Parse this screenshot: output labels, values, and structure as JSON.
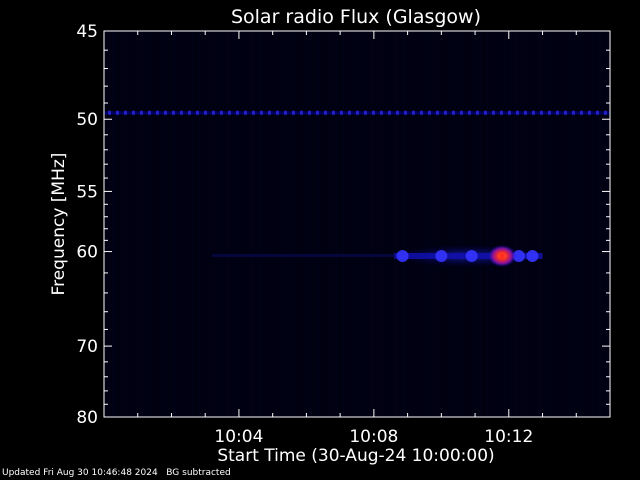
{
  "chart_data": {
    "type": "heatmap",
    "title": "Solar radio Flux (Glasgow)",
    "xlabel": "Start Time (30-Aug-24 10:00:00)",
    "ylabel": "Frequency [MHz]",
    "x_range_minutes": [
      0,
      15
    ],
    "ylim": [
      45,
      80
    ],
    "y_ticks": [
      45,
      50,
      55,
      60,
      70,
      80
    ],
    "x_ticks": [
      {
        "minute": 4,
        "label": "10:04"
      },
      {
        "minute": 8,
        "label": "10:08"
      },
      {
        "minute": 12,
        "label": "10:12"
      }
    ],
    "background_color": "#000010",
    "features": [
      {
        "kind": "interference-line",
        "freq_mhz": 49.6,
        "color": "#2020c8"
      },
      {
        "kind": "burst",
        "minute_start": 8.6,
        "minute_end": 13.0,
        "freq_mhz": 60.4,
        "color": "#1010b0"
      },
      {
        "kind": "burst-peak",
        "minute": 11.8,
        "freq_mhz": 60.4,
        "color": "#ff3020"
      }
    ]
  },
  "footer": {
    "updated": "Updated Fri Aug 30 10:46:48 2024",
    "bg_note": "BG subtracted"
  }
}
